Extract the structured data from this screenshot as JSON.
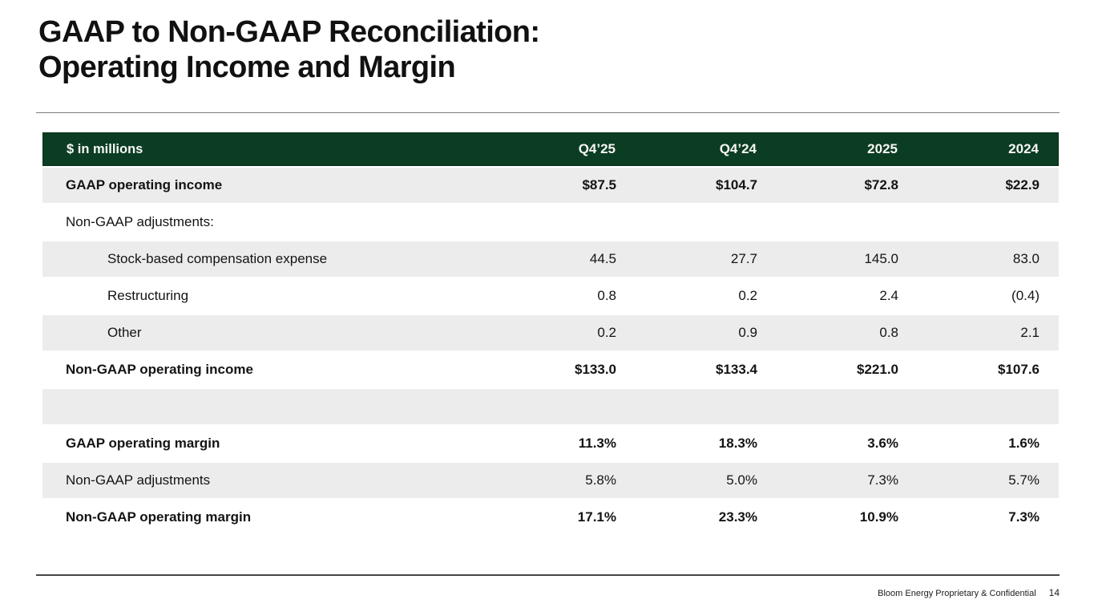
{
  "slide": {
    "title_line1": "GAAP to Non-GAAP Reconciliation:",
    "title_line2": "Operating Income and Margin",
    "footer_text": "Bloom Energy Proprietary & Confidential",
    "page_number": "14"
  },
  "colors": {
    "header_green": "#0b3d23",
    "row_gray": "#ececec"
  },
  "table": {
    "header": {
      "label": "$ in millions",
      "columns": [
        "Q4’25",
        "Q4’24",
        "2025",
        "2024"
      ]
    },
    "rows": [
      {
        "label": "GAAP operating income",
        "values": [
          "$87.5",
          "$104.7",
          "$72.8",
          "$22.9"
        ],
        "bold": true,
        "indent": 0
      },
      {
        "label": "Non-GAAP adjustments:",
        "values": [
          "",
          "",
          "",
          ""
        ],
        "bold": false,
        "indent": 0
      },
      {
        "label": "Stock-based compensation expense",
        "values": [
          "44.5",
          "27.7",
          "145.0",
          "83.0"
        ],
        "bold": false,
        "indent": 1
      },
      {
        "label": "Restructuring",
        "values": [
          "0.8",
          "0.2",
          "2.4",
          "(0.4)"
        ],
        "bold": false,
        "indent": 1
      },
      {
        "label": "Other",
        "values": [
          "0.2",
          "0.9",
          "0.8",
          "2.1"
        ],
        "bold": false,
        "indent": 1
      },
      {
        "label": "Non-GAAP operating income",
        "values": [
          "$133.0",
          "$133.4",
          "$221.0",
          "$107.6"
        ],
        "bold": true,
        "indent": 0
      },
      {
        "label": "",
        "values": [
          "",
          "",
          "",
          ""
        ],
        "bold": false,
        "indent": 0,
        "spacer": true
      },
      {
        "label": "GAAP operating margin",
        "values": [
          "11.3%",
          "18.3%",
          "3.6%",
          "1.6%"
        ],
        "bold": true,
        "indent": 0
      },
      {
        "label": "Non-GAAP adjustments",
        "values": [
          "5.8%",
          "5.0%",
          "7.3%",
          "5.7%"
        ],
        "bold": false,
        "indent": 0
      },
      {
        "label": "Non-GAAP operating margin",
        "values": [
          "17.1%",
          "23.3%",
          "10.9%",
          "7.3%"
        ],
        "bold": true,
        "indent": 0
      }
    ]
  },
  "chart_data": {
    "type": "table",
    "title": "GAAP to Non-GAAP Reconciliation: Operating Income and Margin",
    "unit": "$ in millions",
    "columns": [
      "Q4'25",
      "Q4'24",
      "2025",
      "2024"
    ],
    "rows": [
      {
        "label": "GAAP operating income",
        "values": [
          87.5,
          104.7,
          72.8,
          22.9
        ]
      },
      {
        "label": "Stock-based compensation expense",
        "values": [
          44.5,
          27.7,
          145.0,
          83.0
        ]
      },
      {
        "label": "Restructuring",
        "values": [
          0.8,
          0.2,
          2.4,
          -0.4
        ]
      },
      {
        "label": "Other",
        "values": [
          0.2,
          0.9,
          0.8,
          2.1
        ]
      },
      {
        "label": "Non-GAAP operating income",
        "values": [
          133.0,
          133.4,
          221.0,
          107.6
        ]
      },
      {
        "label": "GAAP operating margin (%)",
        "values": [
          11.3,
          18.3,
          3.6,
          1.6
        ]
      },
      {
        "label": "Non-GAAP adjustments (%)",
        "values": [
          5.8,
          5.0,
          7.3,
          5.7
        ]
      },
      {
        "label": "Non-GAAP operating margin (%)",
        "values": [
          17.1,
          23.3,
          10.9,
          7.3
        ]
      }
    ]
  }
}
